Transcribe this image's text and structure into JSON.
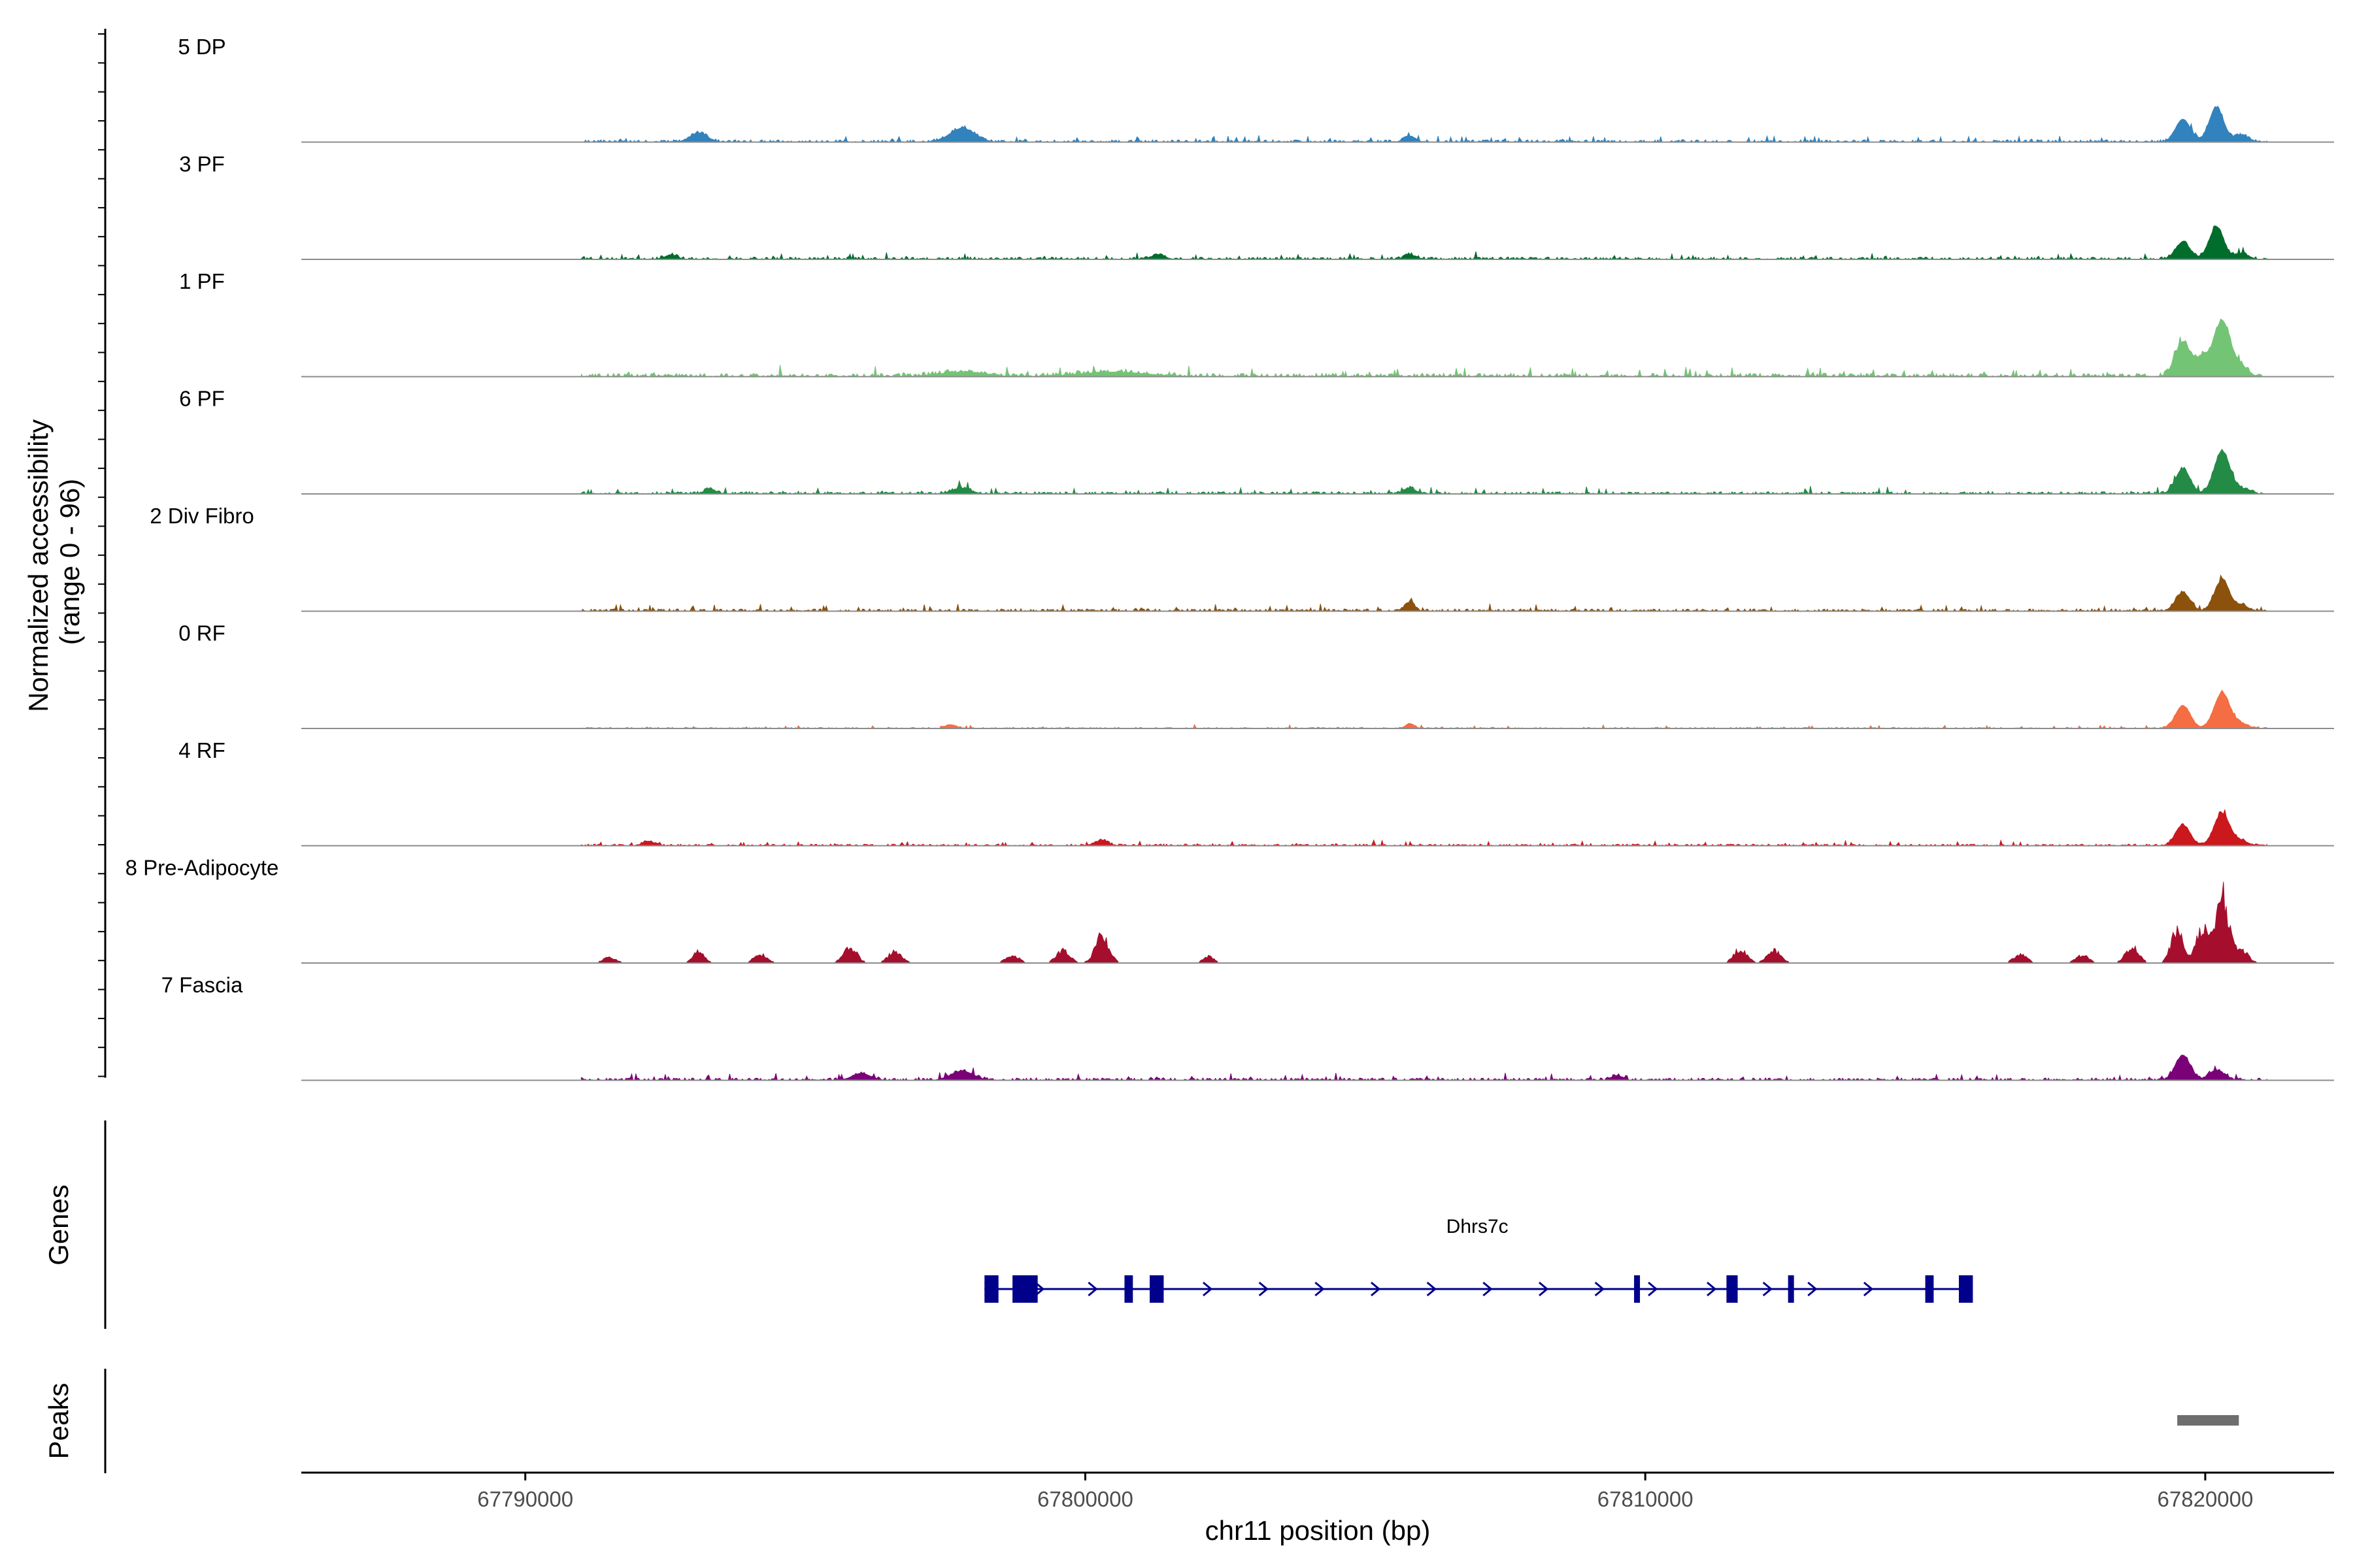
{
  "chart_data": {
    "type": "area",
    "title": "",
    "chromosome": "chr11",
    "xlabel": "chr11 position (bp)",
    "ylabel": "Normalized accessibility (range 0 - 96)",
    "ylabel_lines": [
      "Normalized accessibility",
      "(range 0 - 96)"
    ],
    "y_range": [
      0,
      96
    ],
    "xlim": [
      67786000,
      67822300
    ],
    "x_ticks": [
      67790000,
      67800000,
      67810000,
      67820000
    ],
    "x_tick_labels": [
      "67790000",
      "67800000",
      "67810000",
      "67820000"
    ],
    "track_start": 67791000,
    "track_end": 67821100,
    "series": [
      {
        "name": "5 DP",
        "color": "#3182bd",
        "baseline": 2,
        "peaks": [
          [
            67793100,
            8,
            150
          ],
          [
            67797800,
            12,
            220
          ],
          [
            67805800,
            5,
            100
          ],
          [
            67819600,
            20,
            130
          ],
          [
            67820200,
            30,
            130
          ],
          [
            67820650,
            6,
            120
          ]
        ]
      },
      {
        "name": "3 PF",
        "color": "#006d2c",
        "baseline": 2,
        "peaks": [
          [
            67792600,
            4,
            100
          ],
          [
            67801300,
            4,
            120
          ],
          [
            67805800,
            4,
            100
          ],
          [
            67819600,
            15,
            130
          ],
          [
            67820200,
            28,
            130
          ],
          [
            67820650,
            5,
            120
          ]
        ]
      },
      {
        "name": "1 PF",
        "color": "#74c476",
        "baseline": 3,
        "peaks": [
          [
            67797800,
            4,
            400
          ],
          [
            67800500,
            4,
            600
          ],
          [
            67819600,
            30,
            140
          ],
          [
            67819950,
            15,
            110
          ],
          [
            67820300,
            49,
            150
          ],
          [
            67820650,
            8,
            120
          ]
        ]
      },
      {
        "name": "6 PF",
        "color": "#238b45",
        "baseline": 2,
        "peaks": [
          [
            67793300,
            4,
            100
          ],
          [
            67797800,
            5,
            160
          ],
          [
            67805800,
            5,
            100
          ],
          [
            67819600,
            22,
            130
          ],
          [
            67820300,
            37,
            140
          ],
          [
            67820650,
            4,
            120
          ]
        ]
      },
      {
        "name": "2 Div Fibro",
        "color": "#8c510a",
        "baseline": 2,
        "peaks": [
          [
            67805800,
            8,
            80
          ],
          [
            67819600,
            16,
            130
          ],
          [
            67820300,
            27,
            130
          ],
          [
            67820650,
            5,
            120
          ]
        ]
      },
      {
        "name": "0 RF",
        "color": "#f46d43",
        "baseline": 1,
        "peaks": [
          [
            67797600,
            3,
            100
          ],
          [
            67805800,
            4,
            80
          ],
          [
            67819600,
            20,
            130
          ],
          [
            67820300,
            31,
            140
          ],
          [
            67820650,
            4,
            120
          ]
        ]
      },
      {
        "name": "4 RF",
        "color": "#cb181d",
        "baseline": 1.5,
        "peaks": [
          [
            67792200,
            4,
            100
          ],
          [
            67800300,
            5,
            100
          ],
          [
            67819600,
            18,
            130
          ],
          [
            67820300,
            28,
            140
          ],
          [
            67820650,
            4,
            120
          ]
        ]
      },
      {
        "name": "8 Pre-Adipocyte",
        "color": "#a50f2d",
        "baseline": 0,
        "peaks": [
          [
            67791500,
            6,
            120
          ],
          [
            67793100,
            12,
            100
          ],
          [
            67794200,
            9,
            120
          ],
          [
            67795800,
            17,
            120
          ],
          [
            67796600,
            12,
            120
          ],
          [
            67798700,
            8,
            120
          ],
          [
            67799600,
            13,
            120
          ],
          [
            67800300,
            29,
            120
          ],
          [
            67802200,
            7,
            100
          ],
          [
            67811700,
            15,
            120
          ],
          [
            67812300,
            13,
            120
          ],
          [
            67816700,
            9,
            120
          ],
          [
            67817800,
            8,
            120
          ],
          [
            67818700,
            17,
            120
          ],
          [
            67819500,
            34,
            110
          ],
          [
            67819950,
            36,
            110
          ],
          [
            67820300,
            73,
            120
          ],
          [
            67820650,
            13,
            120
          ]
        ]
      },
      {
        "name": "7 Fascia",
        "color": "#7a0177",
        "baseline": 2,
        "peaks": [
          [
            67796000,
            6,
            160
          ],
          [
            67797800,
            8,
            200
          ],
          [
            67809500,
            4,
            100
          ],
          [
            67819600,
            22,
            130
          ],
          [
            67820200,
            9,
            130
          ]
        ]
      }
    ],
    "gene": {
      "name": "Dhrs7c",
      "color": "#00008b",
      "start": 67798200,
      "end": 67815800,
      "strand": "+",
      "exons": [
        [
          67798200,
          67798450
        ],
        [
          67798700,
          67799150
        ],
        [
          67800700,
          67800850
        ],
        [
          67801150,
          67801400
        ],
        [
          67809800,
          67809900
        ],
        [
          67811450,
          67811650
        ],
        [
          67812550,
          67812650
        ],
        [
          67815000,
          67815150
        ],
        [
          67815600,
          67815850
        ]
      ],
      "arrow_positions": [
        67798300,
        67799200,
        67800150,
        67802200,
        67803200,
        67804200,
        67805200,
        67806200,
        67807200,
        67808200,
        67809200,
        67810150,
        67811200,
        67812200,
        67813000,
        67814000
      ]
    },
    "peaks_track": [
      [
        67819500,
        67820600
      ]
    ],
    "panels": {
      "accessibility": "Normalized accessibility",
      "genes": "Genes",
      "peaks": "Peaks"
    },
    "grid": false,
    "legend": "none"
  }
}
